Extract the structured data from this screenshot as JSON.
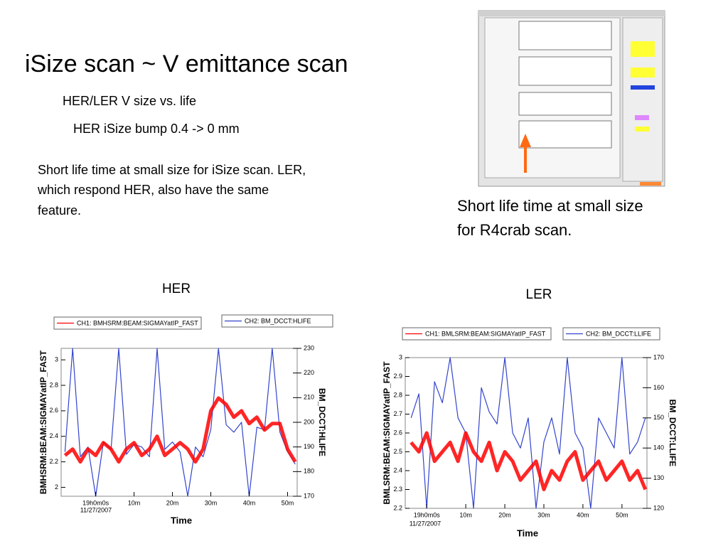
{
  "slide": {
    "title": "iSize scan ~ V emittance scan",
    "subtitle1": "HER/LER V size vs. life",
    "subtitle2": "HER iSize bump 0.4 -> 0 mm",
    "note_left": [
      "Short life time at small size for iSize scan. LER,",
      "which respond HER, also have the same",
      "feature."
    ],
    "note_right": [
      "Short life time at small size",
      "for R4crab scan."
    ],
    "label_her": "HER",
    "label_ler": "LER"
  },
  "chart_data": [
    {
      "type": "line",
      "y_label": "BMHSRM:BEAM:SIGMAYatIP_FAST",
      "y2_label": "BM_DCCT:HLIFE",
      "x_label": "Time",
      "date": "11/27/2007",
      "x": [
        -8,
        -6,
        -4,
        -2,
        0,
        2,
        4,
        6,
        8,
        10,
        12,
        14,
        16,
        18,
        20,
        22,
        24,
        26,
        28,
        30,
        32,
        34,
        36,
        38,
        40,
        42,
        44,
        46,
        48,
        50,
        52
      ],
      "series": [
        {
          "name": "CH1: BMHSRM:BEAM:SIGMAYatIP_FAST",
          "color": "#ff0000",
          "values": [
            2.25,
            2.3,
            2.2,
            2.3,
            2.25,
            2.35,
            2.3,
            2.2,
            2.3,
            2.35,
            2.25,
            2.3,
            2.4,
            2.25,
            2.3,
            2.35,
            2.3,
            2.2,
            2.3,
            2.6,
            2.7,
            2.65,
            2.55,
            2.6,
            2.5,
            2.55,
            2.45,
            2.5,
            2.5,
            2.3,
            2.2
          ]
        },
        {
          "name": "CH2: BM_DCCT:HLIFE",
          "color": "#3344cc",
          "axis": "y2",
          "values": [
            188,
            230,
            186,
            190,
            170,
            192,
            189,
            230,
            187,
            191,
            190,
            186,
            230,
            189,
            192,
            188,
            170,
            190,
            186,
            197,
            230,
            199,
            196,
            200,
            170,
            198,
            197,
            230,
            196,
            188,
            183
          ]
        }
      ],
      "xlim": [
        -9,
        52.5
      ],
      "ylim": [
        1.93,
        3.09
      ],
      "y2lim": [
        170,
        230
      ],
      "xticks": [
        {
          "value": 0,
          "label": "19h0m0s"
        },
        {
          "value": 10,
          "label": "10m"
        },
        {
          "value": 20,
          "label": "20m"
        },
        {
          "value": 30,
          "label": "30m"
        },
        {
          "value": 40,
          "label": "40m"
        },
        {
          "value": 50,
          "label": "50m"
        }
      ],
      "yticks": [
        2,
        2.2,
        2.4,
        2.6,
        2.8,
        3
      ],
      "y2ticks": [
        170,
        180,
        190,
        200,
        210,
        220,
        230
      ],
      "grid": false
    },
    {
      "type": "line",
      "y_label": "BMLSRM:BEAM:SIGMAYatIP_FAST",
      "y2_label": "BM_DCCT:LLIFE",
      "x_label": "Time",
      "date": "11/27/2007",
      "x": [
        -4,
        -2,
        0,
        2,
        4,
        6,
        8,
        10,
        12,
        14,
        16,
        18,
        20,
        22,
        24,
        26,
        28,
        30,
        32,
        34,
        36,
        38,
        40,
        42,
        44,
        46,
        48,
        50,
        52,
        54,
        56
      ],
      "series": [
        {
          "name": "CH1: BMLSRM:BEAM:SIGMAYatIP_FAST",
          "color": "#ff0000",
          "values": [
            2.55,
            2.5,
            2.6,
            2.45,
            2.5,
            2.55,
            2.45,
            2.6,
            2.5,
            2.45,
            2.55,
            2.4,
            2.5,
            2.45,
            2.35,
            2.4,
            2.45,
            2.3,
            2.4,
            2.35,
            2.45,
            2.5,
            2.35,
            2.4,
            2.45,
            2.35,
            2.4,
            2.45,
            2.35,
            2.4,
            2.3
          ]
        },
        {
          "name": "CH2: BM_DCCT:LLIFE",
          "color": "#3344cc",
          "axis": "y2",
          "values": [
            150,
            158,
            120,
            162,
            155,
            170,
            150,
            145,
            120,
            160,
            152,
            148,
            170,
            145,
            140,
            150,
            120,
            142,
            150,
            138,
            170,
            145,
            140,
            120,
            150,
            145,
            140,
            170,
            138,
            142,
            150
          ]
        }
      ],
      "xlim": [
        -5.5,
        56.4
      ],
      "ylim": [
        2.2,
        3
      ],
      "y2lim": [
        120,
        170
      ],
      "xticks": [
        {
          "value": 0,
          "label": "19h0m0s"
        },
        {
          "value": 10,
          "label": "10m"
        },
        {
          "value": 20,
          "label": "20m"
        },
        {
          "value": 30,
          "label": "30m"
        },
        {
          "value": 40,
          "label": "40m"
        },
        {
          "value": 50,
          "label": "50m"
        }
      ],
      "yticks": [
        2.2,
        2.3,
        2.4,
        2.5,
        2.6,
        2.7,
        2.8,
        2.9,
        3
      ],
      "y2ticks": [
        120,
        130,
        140,
        150,
        160,
        170
      ],
      "grid": false
    }
  ]
}
